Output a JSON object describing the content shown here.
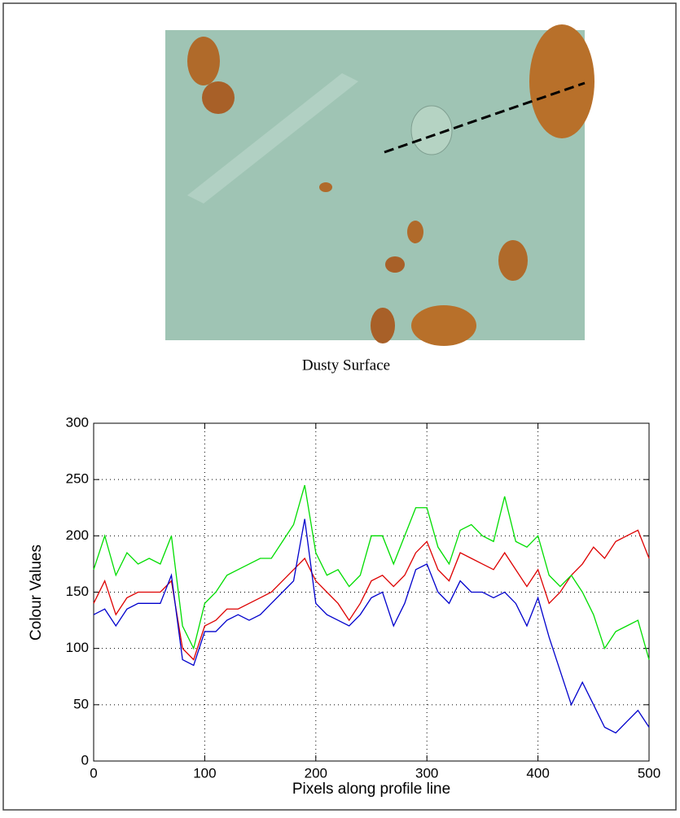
{
  "caption": "Dusty Surface",
  "chart_data": {
    "type": "line",
    "xlabel": "Pixels along profile line",
    "ylabel": "Colour Values",
    "x": [
      0,
      10,
      20,
      30,
      40,
      50,
      60,
      70,
      80,
      90,
      100,
      110,
      120,
      130,
      140,
      150,
      160,
      170,
      180,
      190,
      200,
      210,
      220,
      230,
      240,
      250,
      260,
      270,
      280,
      290,
      300,
      310,
      320,
      330,
      340,
      350,
      360,
      370,
      380,
      390,
      400,
      410,
      420,
      430,
      440,
      450,
      460,
      470,
      480,
      490,
      500
    ],
    "series": [
      {
        "name": "Red",
        "color": "#dd0000",
        "values": [
          140,
          160,
          130,
          145,
          150,
          150,
          150,
          160,
          100,
          90,
          120,
          125,
          135,
          135,
          140,
          145,
          150,
          160,
          170,
          180,
          160,
          150,
          140,
          125,
          140,
          160,
          165,
          155,
          165,
          185,
          195,
          170,
          160,
          185,
          180,
          175,
          170,
          185,
          170,
          155,
          170,
          140,
          150,
          165,
          175,
          190,
          180,
          195,
          200,
          205,
          180
        ]
      },
      {
        "name": "Green",
        "color": "#00dd00",
        "values": [
          170,
          200,
          165,
          185,
          175,
          180,
          175,
          200,
          120,
          100,
          140,
          150,
          165,
          170,
          175,
          180,
          180,
          195,
          210,
          245,
          185,
          165,
          170,
          155,
          165,
          200,
          200,
          175,
          200,
          225,
          225,
          190,
          175,
          205,
          210,
          200,
          195,
          235,
          195,
          190,
          200,
          165,
          155,
          165,
          150,
          130,
          100,
          115,
          120,
          125,
          90
        ]
      },
      {
        "name": "Blue",
        "color": "#0000cc",
        "values": [
          130,
          135,
          120,
          135,
          140,
          140,
          140,
          165,
          90,
          85,
          115,
          115,
          125,
          130,
          125,
          130,
          140,
          150,
          160,
          215,
          140,
          130,
          125,
          120,
          130,
          145,
          150,
          120,
          140,
          170,
          175,
          150,
          140,
          160,
          150,
          150,
          145,
          150,
          140,
          120,
          145,
          110,
          80,
          50,
          70,
          50,
          30,
          25,
          35,
          45,
          30
        ]
      }
    ],
    "xlim": [
      0,
      500
    ],
    "xticks": [
      0,
      100,
      200,
      300,
      400,
      500
    ],
    "ylim": [
      0,
      300
    ],
    "yticks": [
      0,
      50,
      100,
      150,
      200,
      250,
      300
    ],
    "grid": true
  }
}
